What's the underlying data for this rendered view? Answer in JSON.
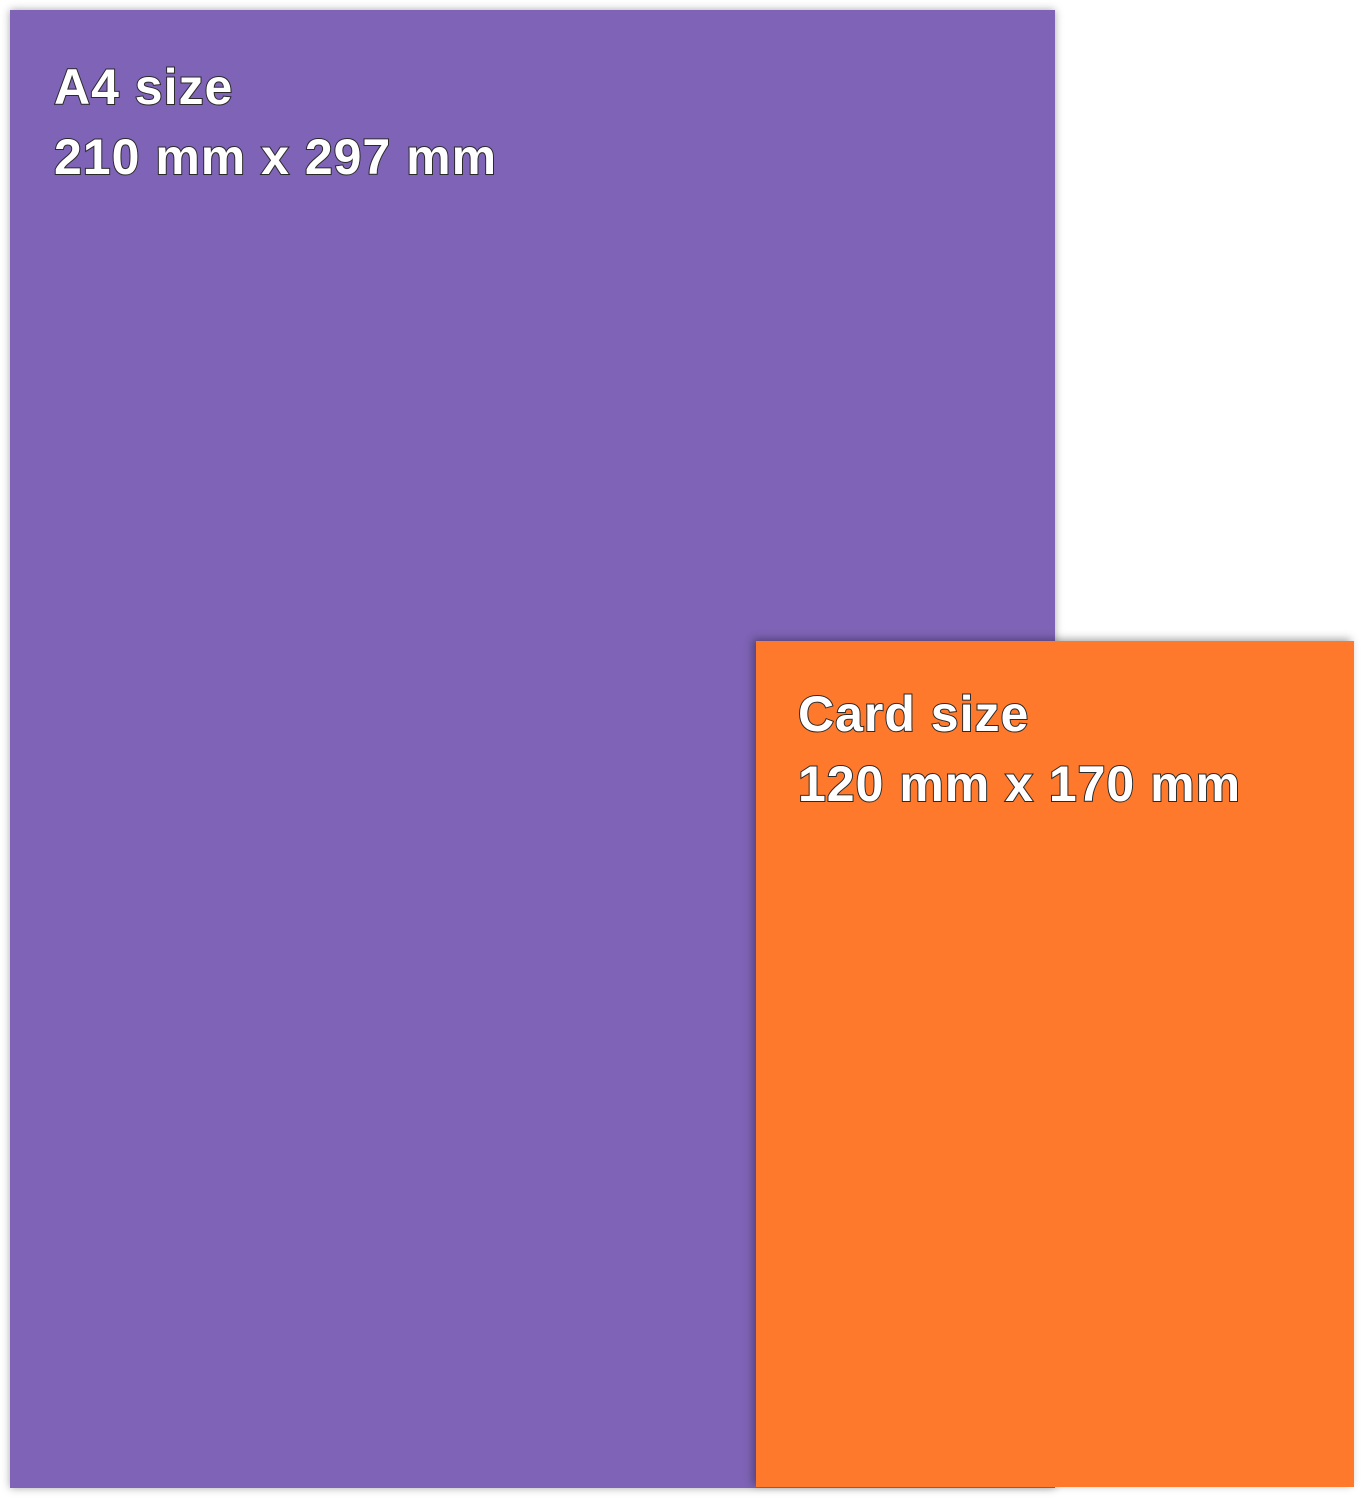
{
  "colors": {
    "a4": "#7e63b6",
    "card": "#fe792b",
    "background": "#ffffff"
  },
  "a4": {
    "title": "A4 size",
    "dimensions": "210 mm x 297 mm"
  },
  "card": {
    "title": "Card size",
    "dimensions": "120 mm x 170 mm"
  }
}
